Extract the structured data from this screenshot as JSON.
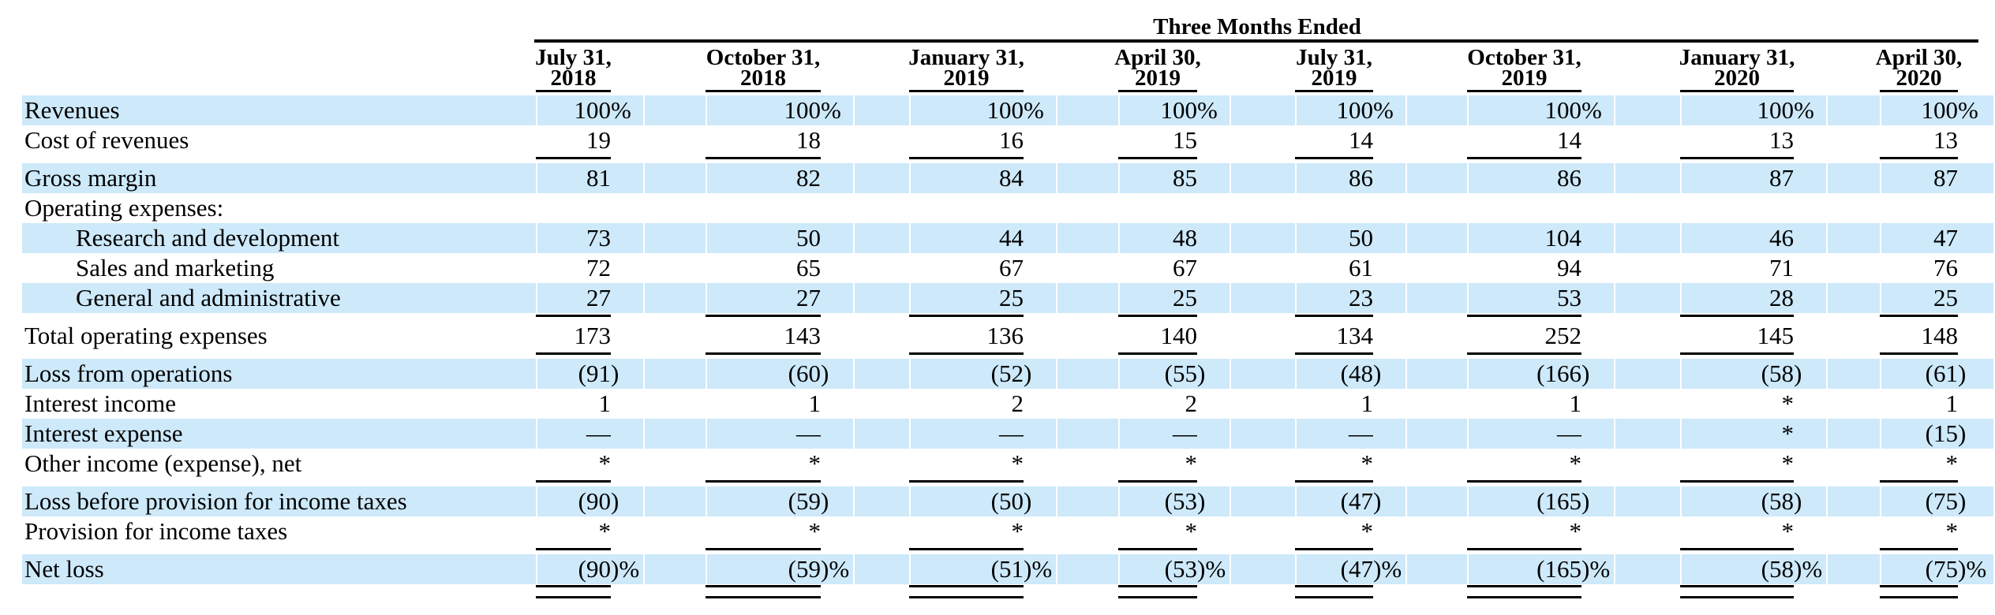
{
  "header": {
    "title": "Three Months Ended",
    "columns": [
      {
        "l1": "July 31,",
        "l2": "2018"
      },
      {
        "l1": "October 31,",
        "l2": "2018"
      },
      {
        "l1": "January 31,",
        "l2": "2019"
      },
      {
        "l1": "April 30,",
        "l2": "2019"
      },
      {
        "l1": "July 31,",
        "l2": "2019"
      },
      {
        "l1": "October 31,",
        "l2": "2019"
      },
      {
        "l1": "January 31,",
        "l2": "2020"
      },
      {
        "l1": "April 30,",
        "l2": "2020"
      }
    ]
  },
  "table": {
    "rows": [
      {
        "label": "Revenues",
        "indent": false,
        "highlight": true,
        "values": [
          "100%",
          "100%",
          "100%",
          "100%",
          "100%",
          "100%",
          "100%",
          "100%"
        ]
      },
      {
        "label": "Cost of revenues",
        "indent": false,
        "highlight": false,
        "values": [
          "19",
          "18",
          "16",
          "15",
          "14",
          "14",
          "13",
          "13"
        ]
      },
      {
        "type": "rule",
        "style": "single"
      },
      {
        "label": "Gross margin",
        "indent": false,
        "highlight": true,
        "values": [
          "81",
          "82",
          "84",
          "85",
          "86",
          "86",
          "87",
          "87"
        ]
      },
      {
        "label": "Operating expenses:",
        "indent": false,
        "highlight": false,
        "values": [
          "",
          "",
          "",
          "",
          "",
          "",
          "",
          ""
        ]
      },
      {
        "label": "Research and development",
        "indent": true,
        "highlight": true,
        "values": [
          "73",
          "50",
          "44",
          "48",
          "50",
          "104",
          "46",
          "47"
        ]
      },
      {
        "label": "Sales and marketing",
        "indent": true,
        "highlight": false,
        "values": [
          "72",
          "65",
          "67",
          "67",
          "61",
          "94",
          "71",
          "76"
        ]
      },
      {
        "label": "General and administrative",
        "indent": true,
        "highlight": true,
        "values": [
          "27",
          "27",
          "25",
          "25",
          "23",
          "53",
          "28",
          "25"
        ]
      },
      {
        "type": "rule",
        "style": "single"
      },
      {
        "label": "Total operating expenses",
        "indent": false,
        "highlight": false,
        "values": [
          "173",
          "143",
          "136",
          "140",
          "134",
          "252",
          "145",
          "148"
        ]
      },
      {
        "type": "rule",
        "style": "single"
      },
      {
        "label": "Loss from operations",
        "indent": false,
        "highlight": true,
        "values": [
          "(91)",
          "(60)",
          "(52)",
          "(55)",
          "(48)",
          "(166)",
          "(58)",
          "(61)"
        ]
      },
      {
        "label": "Interest income",
        "indent": false,
        "highlight": false,
        "values": [
          "1",
          "1",
          "2",
          "2",
          "1",
          "1",
          "*",
          "1"
        ]
      },
      {
        "label": "Interest expense",
        "indent": false,
        "highlight": true,
        "values": [
          "—",
          "—",
          "—",
          "—",
          "—",
          "—",
          "*",
          "(15)"
        ]
      },
      {
        "label": "Other income (expense), net",
        "indent": false,
        "highlight": false,
        "values": [
          "*",
          "*",
          "*",
          "*",
          "*",
          "*",
          "*",
          "*"
        ]
      },
      {
        "type": "rule",
        "style": "single"
      },
      {
        "label": "Loss before provision for income taxes",
        "indent": false,
        "highlight": true,
        "values": [
          "(90)",
          "(59)",
          "(50)",
          "(53)",
          "(47)",
          "(165)",
          "(58)",
          "(75)"
        ]
      },
      {
        "label": "Provision for income taxes",
        "indent": false,
        "highlight": false,
        "values": [
          "*",
          "*",
          "*",
          "*",
          "*",
          "*",
          "*",
          "*"
        ]
      },
      {
        "type": "rule",
        "style": "single"
      },
      {
        "label": "Net loss",
        "indent": false,
        "highlight": true,
        "values": [
          "(90)%",
          "(59)%",
          "(51)%",
          "(53)%",
          "(47)%",
          "(165)%",
          "(58)%",
          "(75)%"
        ]
      },
      {
        "type": "rule",
        "style": "double"
      }
    ]
  },
  "colors": {
    "row_highlight": "#cde9fa",
    "rule": "#000000",
    "text": "#000000"
  }
}
